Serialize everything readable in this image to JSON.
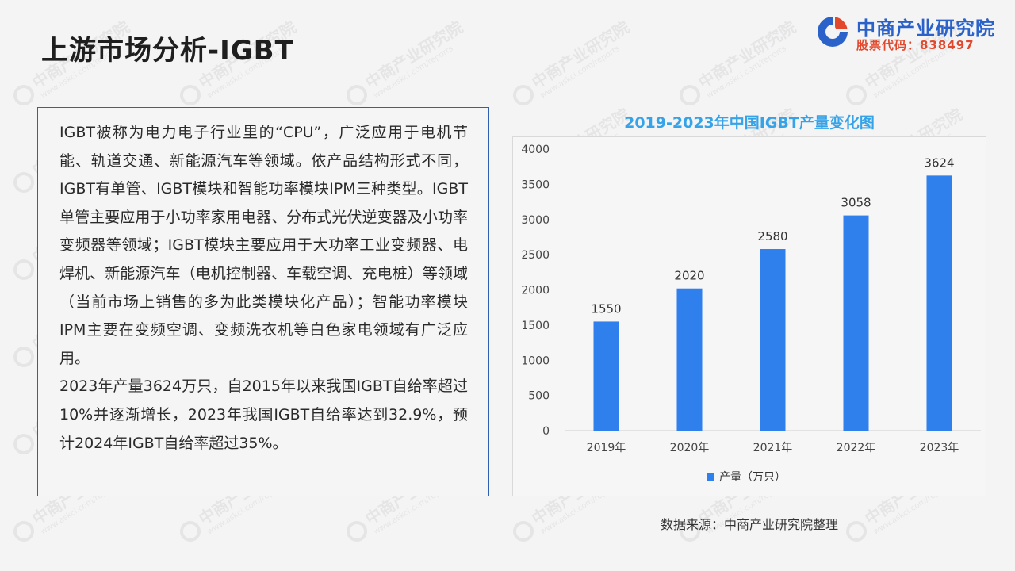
{
  "page": {
    "title": "上游市场分析-IGBT"
  },
  "logo": {
    "name": "中商产业研究院",
    "stock_code": "股票代码：838497",
    "brand_blue": "#2b62c9",
    "brand_red": "#e2492c"
  },
  "body": {
    "paragraphs": [
      "IGBT被称为电力电子行业里的“CPU”，广泛应用于电机节能、轨道交通、新能源汽车等领域。依产品结构形式不同，IGBT有单管、IGBT模块和智能功率模块IPM三种类型。IGBT单管主要应用于小功率家用电器、分布式光伏逆变器及小功率变频器等领域；IGBT模块主要应用于大功率工业变频器、电焊机、新能源汽车（电机控制器、车载空调、充电桩）等领域（当前市场上销售的多为此类模块化产品）；智能功率模块IPM主要在变频空调、变频洗衣机等白色家电领域有广泛应用。",
      "2023年产量3624万只，自2015年以来我国IGBT自给率超过10%并逐渐增长，2023年我国IGBT自给率达到32.9%，预计2024年IGBT自给率超过35%。"
    ]
  },
  "chart_data": {
    "type": "bar",
    "title": "2019-2023年中国IGBT产量变化图",
    "categories": [
      "2019年",
      "2020年",
      "2021年",
      "2022年",
      "2023年"
    ],
    "series": [
      {
        "name": "产量（万只）",
        "values": [
          1550,
          2020,
          2580,
          3058,
          3624
        ],
        "color": "#2f7fec"
      }
    ],
    "ylim": [
      0,
      4000
    ],
    "yticks": [
      0,
      500,
      1000,
      1500,
      2000,
      2500,
      3000,
      3500,
      4000
    ],
    "data_labels": true,
    "grid": false,
    "legend_position": "bottom",
    "title_color": "#36a3e8"
  },
  "source": {
    "text": "数据来源：中商产业研究院整理"
  },
  "watermark": {
    "text": "中商产业研究院",
    "url": "www.askci.com/reports"
  }
}
